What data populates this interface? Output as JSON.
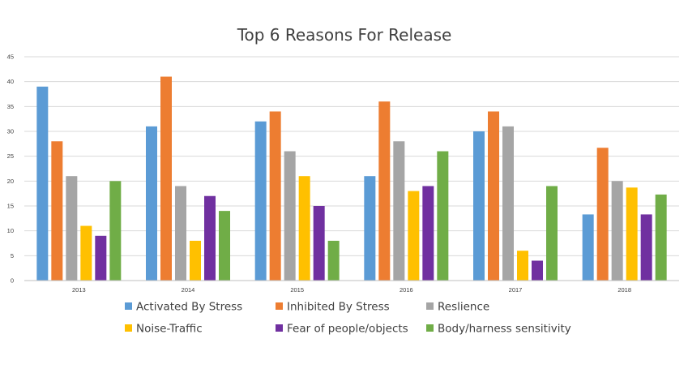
{
  "chart_data": {
    "type": "bar",
    "title": "Top 6 Reasons For Release",
    "xlabel": "",
    "ylabel": "",
    "categories": [
      "2013",
      "2014",
      "2015",
      "2016",
      "2017",
      "2018"
    ],
    "ylim": [
      0,
      45
    ],
    "yticks": [
      "0",
      "5",
      "10",
      "15",
      "20",
      "25",
      "30",
      "35",
      "40",
      "45"
    ],
    "grid": true,
    "legend_position": "bottom",
    "series": [
      {
        "name": "Activated By Stress",
        "color": "#5B9BD5",
        "values": [
          39,
          31,
          32,
          21,
          30,
          13.3
        ]
      },
      {
        "name": "Inhibited By Stress",
        "color": "#ED7D31",
        "values": [
          28,
          41,
          34,
          36,
          34,
          26.7
        ]
      },
      {
        "name": "Reslience",
        "color": "#A5A5A5",
        "values": [
          21,
          19,
          26,
          28,
          31,
          20
        ]
      },
      {
        "name": "Noise-Traffic",
        "color": "#FFC000",
        "values": [
          11,
          8,
          21,
          18,
          6,
          18.7
        ]
      },
      {
        "name": "Fear of people/objects",
        "color": "#7030A0",
        "values": [
          9,
          17,
          15,
          19,
          4,
          13.3
        ]
      },
      {
        "name": "Body/harness sensitivity",
        "color": "#70AD47",
        "values": [
          20,
          14,
          8,
          26,
          19,
          17.3
        ]
      }
    ]
  }
}
